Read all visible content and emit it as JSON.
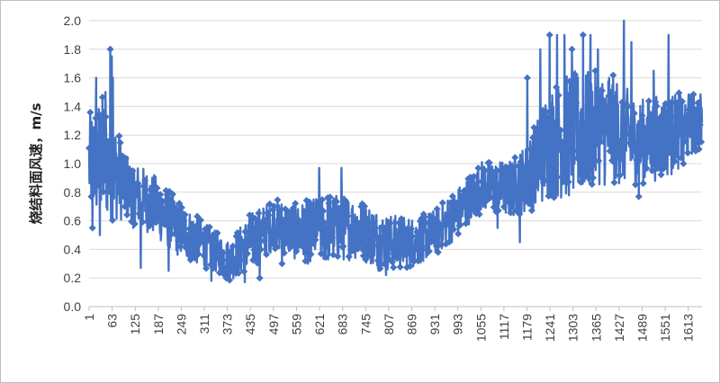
{
  "chart_data": {
    "type": "line",
    "title": "",
    "xlabel": "",
    "ylabel": "烧结料面风速，m/s",
    "ylim": [
      0,
      2.0
    ],
    "y_ticks": [
      "0.0",
      "0.2",
      "0.4",
      "0.6",
      "0.8",
      "1.0",
      "1.2",
      "1.4",
      "1.6",
      "1.8",
      "2.0"
    ],
    "x_range": [
      1,
      1650
    ],
    "x_ticks": [
      "1",
      "63",
      "125",
      "187",
      "249",
      "311",
      "373",
      "435",
      "497",
      "559",
      "621",
      "683",
      "745",
      "807",
      "869",
      "931",
      "993",
      "1055",
      "1117",
      "1179",
      "1241",
      "1303",
      "1365",
      "1427",
      "1489",
      "1551",
      "1613"
    ],
    "grid": "horizontal",
    "marker": "diamond",
    "series_color": "#4472c4",
    "series": [
      {
        "profile": [
          [
            1,
            1.0,
            0.35
          ],
          [
            40,
            1.05,
            0.45
          ],
          [
            70,
            0.95,
            0.35
          ],
          [
            110,
            0.82,
            0.22
          ],
          [
            180,
            0.7,
            0.22
          ],
          [
            240,
            0.55,
            0.2
          ],
          [
            330,
            0.4,
            0.15
          ],
          [
            380,
            0.32,
            0.14
          ],
          [
            430,
            0.45,
            0.2
          ],
          [
            500,
            0.58,
            0.18
          ],
          [
            560,
            0.52,
            0.2
          ],
          [
            640,
            0.55,
            0.25
          ],
          [
            720,
            0.55,
            0.22
          ],
          [
            800,
            0.45,
            0.2
          ],
          [
            870,
            0.45,
            0.18
          ],
          [
            930,
            0.52,
            0.16
          ],
          [
            990,
            0.65,
            0.18
          ],
          [
            1060,
            0.85,
            0.18
          ],
          [
            1130,
            0.82,
            0.2
          ],
          [
            1180,
            0.9,
            0.25
          ],
          [
            1240,
            1.15,
            0.4
          ],
          [
            1300,
            1.2,
            0.45
          ],
          [
            1400,
            1.25,
            0.4
          ],
          [
            1480,
            1.15,
            0.3
          ],
          [
            1560,
            1.2,
            0.3
          ],
          [
            1650,
            1.3,
            0.2
          ]
        ],
        "spikes": [
          [
            20,
            1.6
          ],
          [
            30,
            1.7
          ],
          [
            45,
            1.5
          ],
          [
            58,
            1.8
          ],
          [
            62,
            1.75
          ],
          [
            65,
            1.6
          ],
          [
            95,
            0.95
          ],
          [
            330,
            0.8
          ],
          [
            620,
            0.97
          ],
          [
            680,
            0.97
          ],
          [
            700,
            0.97
          ],
          [
            1180,
            1.6
          ],
          [
            1215,
            1.8
          ],
          [
            1240,
            1.9
          ],
          [
            1260,
            1.9
          ],
          [
            1280,
            1.9
          ],
          [
            1300,
            1.8
          ],
          [
            1330,
            1.9
          ],
          [
            1350,
            1.9
          ],
          [
            1370,
            1.8
          ],
          [
            1400,
            1.6
          ],
          [
            1440,
            2.0
          ],
          [
            1460,
            1.85
          ],
          [
            1480,
            1.5
          ],
          [
            1520,
            1.65
          ],
          [
            1560,
            1.9
          ],
          [
            1580,
            1.4
          ],
          [
            1620,
            1.45
          ]
        ],
        "dips": [
          [
            10,
            0.55
          ],
          [
            30,
            0.5
          ],
          [
            120,
            0.55
          ],
          [
            140,
            0.27
          ],
          [
            215,
            0.25
          ],
          [
            330,
            0.18
          ],
          [
            370,
            0.2
          ],
          [
            420,
            0.17
          ],
          [
            460,
            0.2
          ],
          [
            520,
            0.3
          ],
          [
            590,
            0.3
          ],
          [
            700,
            0.35
          ],
          [
            780,
            0.25
          ],
          [
            800,
            0.22
          ],
          [
            900,
            0.32
          ],
          [
            940,
            0.38
          ],
          [
            1020,
            0.6
          ],
          [
            1100,
            0.55
          ],
          [
            1160,
            0.45
          ],
          [
            1200,
            0.75
          ],
          [
            1290,
            0.85
          ],
          [
            1340,
            0.9
          ],
          [
            1420,
            1.1
          ],
          [
            1480,
            0.77
          ],
          [
            1530,
            0.95
          ],
          [
            1600,
            1.0
          ]
        ]
      }
    ]
  }
}
